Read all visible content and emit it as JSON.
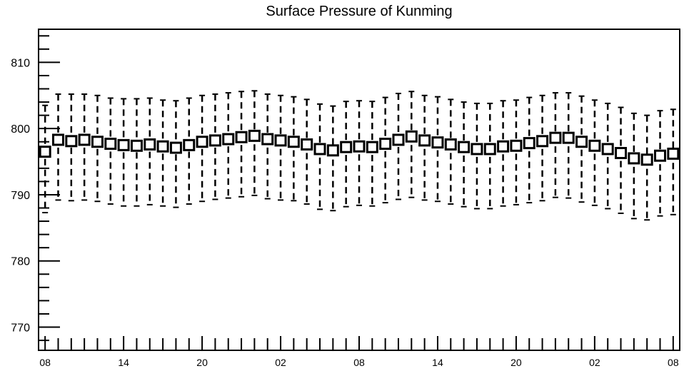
{
  "chart_data": {
    "type": "boxplot",
    "title": "Surface Pressure of Kunming",
    "xlabel": "",
    "ylabel": "",
    "ylim": [
      766.5,
      815
    ],
    "yticks": [
      770,
      780,
      790,
      800,
      810
    ],
    "xlim": [
      -0.5,
      48.5
    ],
    "xtick_positions": [
      0,
      6,
      12,
      18,
      24,
      30,
      36,
      42,
      48
    ],
    "xtick_labels": [
      "08",
      "14",
      "20",
      "02",
      "08",
      "14",
      "20",
      "02",
      "08"
    ],
    "grid": false,
    "series": [
      {
        "median": [
          796.5,
          798.3,
          798.1,
          798.3,
          798.0,
          797.7,
          797.5,
          797.4,
          797.6,
          797.3,
          797.1,
          797.5,
          798.0,
          798.2,
          798.4,
          798.7,
          798.9,
          798.4,
          798.2,
          798.0,
          797.6,
          796.9,
          796.7,
          797.2,
          797.3,
          797.2,
          797.7,
          798.3,
          798.8,
          798.2,
          797.9,
          797.6,
          797.2,
          796.9,
          796.9,
          797.3,
          797.4,
          797.8,
          798.1,
          798.6,
          798.6,
          798.0,
          797.4,
          796.9,
          796.3,
          795.5,
          795.3,
          795.9,
          796.2
        ],
        "low": [
          787.3,
          789.2,
          789.1,
          789.2,
          789.0,
          788.6,
          788.3,
          788.3,
          788.5,
          788.3,
          788.1,
          788.6,
          789.0,
          789.3,
          789.5,
          789.7,
          789.9,
          789.4,
          789.2,
          789.1,
          788.6,
          787.8,
          787.6,
          788.2,
          788.4,
          788.3,
          788.8,
          789.3,
          789.6,
          789.2,
          789.0,
          788.6,
          788.2,
          787.9,
          787.9,
          788.3,
          788.5,
          788.8,
          789.1,
          789.6,
          789.5,
          788.9,
          788.4,
          787.9,
          787.2,
          786.4,
          786.2,
          786.8,
          787.0
        ],
        "high": [
          803.5,
          805.2,
          805.2,
          805.2,
          805.0,
          804.6,
          804.5,
          804.5,
          804.6,
          804.3,
          804.2,
          804.6,
          805.0,
          805.2,
          805.4,
          805.6,
          805.7,
          805.2,
          805.0,
          804.8,
          804.4,
          803.7,
          803.4,
          804.1,
          804.2,
          804.1,
          804.7,
          805.3,
          805.6,
          805.0,
          804.8,
          804.4,
          804.0,
          803.8,
          803.8,
          804.2,
          804.3,
          804.7,
          805.0,
          805.4,
          805.4,
          804.9,
          804.3,
          803.8,
          803.2,
          802.3,
          802.0,
          802.7,
          802.9
        ]
      }
    ]
  }
}
